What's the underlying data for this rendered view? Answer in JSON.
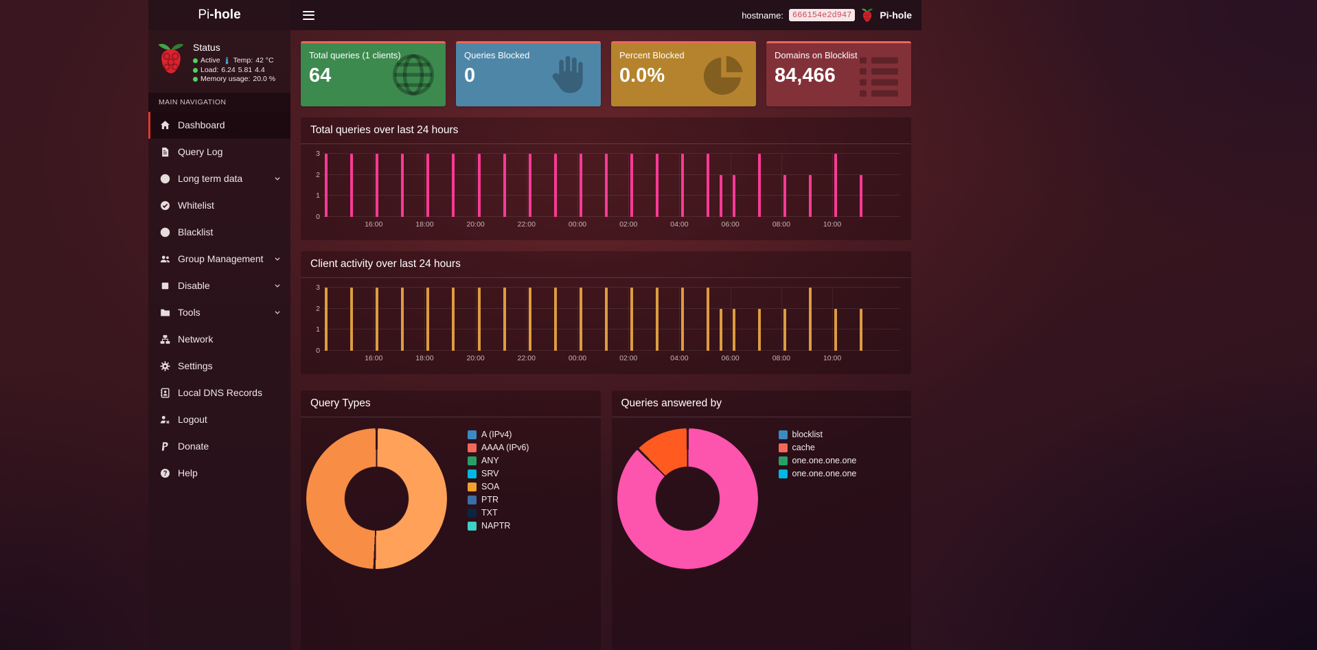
{
  "brand": {
    "prefix": "Pi",
    "bold": "-hole"
  },
  "navbar": {
    "hostname_label": "hostname:",
    "hostname_value": "666154e2d947",
    "product_label": "Pi-hole"
  },
  "theme": {
    "nav_active_border": "#e0382c",
    "status_dot": "#4fd35f",
    "hostname_badge_bg": "#f6e7e9",
    "hostname_badge_text": "#c9505a",
    "card_top_border": "#ea675c"
  },
  "sidebar": {
    "status_title": "Status",
    "status": {
      "active_label": "Active",
      "temp_label": "Temp:",
      "temp_value": "42 °C",
      "load_label": "Load:",
      "load_values": [
        "6.24",
        "5.81",
        "4.4"
      ],
      "memory_label": "Memory usage:",
      "memory_value": "20.0 %"
    },
    "section_label": "MAIN NAVIGATION",
    "items": [
      {
        "label": "Dashboard",
        "icon": "home-icon",
        "active": true
      },
      {
        "label": "Query Log",
        "icon": "file-icon"
      },
      {
        "label": "Long term data",
        "icon": "clock-icon",
        "expandable": true
      },
      {
        "label": "Whitelist",
        "icon": "check-circle-icon"
      },
      {
        "label": "Blacklist",
        "icon": "ban-icon"
      },
      {
        "label": "Group Management",
        "icon": "users-icon",
        "expandable": true
      },
      {
        "label": "Disable",
        "icon": "stop-icon",
        "expandable": true
      },
      {
        "label": "Tools",
        "icon": "folder-icon",
        "expandable": true
      },
      {
        "label": "Network",
        "icon": "network-icon"
      },
      {
        "label": "Settings",
        "icon": "gear-icon"
      },
      {
        "label": "Local DNS Records",
        "icon": "address-book-icon"
      },
      {
        "label": "Logout",
        "icon": "logout-icon"
      },
      {
        "label": "Donate",
        "icon": "paypal-icon"
      },
      {
        "label": "Help",
        "icon": "question-icon"
      }
    ]
  },
  "cards": [
    {
      "title": "Total queries (1 clients)",
      "value": "64",
      "color": "#3c8a4e",
      "icon": "globe-icon"
    },
    {
      "title": "Queries Blocked",
      "value": "0",
      "color": "#4e86a8",
      "icon": "hand-icon"
    },
    {
      "title": "Percent Blocked",
      "value": "0.0%",
      "color": "#b5832d",
      "icon": "pie-chart-icon"
    },
    {
      "title": "Domains on Blocklist",
      "value": "84,466",
      "color": "#833139",
      "icon": "list-icon"
    }
  ],
  "chart_data": [
    {
      "type": "bar",
      "title": "Total queries over last 24 hours",
      "color": "#fb3a96",
      "ylim": [
        0,
        3
      ],
      "yticks": [
        0,
        1,
        2,
        3
      ],
      "x_axis_start": "14:00",
      "x_axis_total_minutes": 1360,
      "xticks": [
        {
          "label": "16:00",
          "t": 120
        },
        {
          "label": "18:00",
          "t": 240
        },
        {
          "label": "20:00",
          "t": 360
        },
        {
          "label": "22:00",
          "t": 480
        },
        {
          "label": "00:00",
          "t": 600
        },
        {
          "label": "02:00",
          "t": 720
        },
        {
          "label": "04:00",
          "t": 840
        },
        {
          "label": "06:00",
          "t": 960
        },
        {
          "label": "08:00",
          "t": 1080
        },
        {
          "label": "10:00",
          "t": 1200
        }
      ],
      "bars": [
        {
          "t": 8,
          "v": 3
        },
        {
          "t": 68,
          "v": 3
        },
        {
          "t": 128,
          "v": 3
        },
        {
          "t": 188,
          "v": 3
        },
        {
          "t": 248,
          "v": 3
        },
        {
          "t": 308,
          "v": 3
        },
        {
          "t": 368,
          "v": 3
        },
        {
          "t": 428,
          "v": 3
        },
        {
          "t": 488,
          "v": 3
        },
        {
          "t": 548,
          "v": 3
        },
        {
          "t": 608,
          "v": 3
        },
        {
          "t": 668,
          "v": 3
        },
        {
          "t": 728,
          "v": 3
        },
        {
          "t": 788,
          "v": 3
        },
        {
          "t": 848,
          "v": 3
        },
        {
          "t": 908,
          "v": 3
        },
        {
          "t": 938,
          "v": 2
        },
        {
          "t": 968,
          "v": 2
        },
        {
          "t": 1028,
          "v": 3
        },
        {
          "t": 1088,
          "v": 2
        },
        {
          "t": 1148,
          "v": 2
        },
        {
          "t": 1208,
          "v": 3
        },
        {
          "t": 1268,
          "v": 2
        }
      ]
    },
    {
      "type": "bar",
      "title": "Client activity over last 24 hours",
      "color": "#dd9c40",
      "ylim": [
        0,
        3
      ],
      "yticks": [
        0,
        1,
        2,
        3
      ],
      "x_axis_start": "14:00",
      "x_axis_total_minutes": 1360,
      "xticks": [
        {
          "label": "16:00",
          "t": 120
        },
        {
          "label": "18:00",
          "t": 240
        },
        {
          "label": "20:00",
          "t": 360
        },
        {
          "label": "22:00",
          "t": 480
        },
        {
          "label": "00:00",
          "t": 600
        },
        {
          "label": "02:00",
          "t": 720
        },
        {
          "label": "04:00",
          "t": 840
        },
        {
          "label": "06:00",
          "t": 960
        },
        {
          "label": "08:00",
          "t": 1080
        },
        {
          "label": "10:00",
          "t": 1200
        }
      ],
      "bars": [
        {
          "t": 8,
          "v": 3
        },
        {
          "t": 68,
          "v": 3
        },
        {
          "t": 128,
          "v": 3
        },
        {
          "t": 188,
          "v": 3
        },
        {
          "t": 248,
          "v": 3
        },
        {
          "t": 308,
          "v": 3
        },
        {
          "t": 368,
          "v": 3
        },
        {
          "t": 428,
          "v": 3
        },
        {
          "t": 488,
          "v": 3
        },
        {
          "t": 548,
          "v": 3
        },
        {
          "t": 608,
          "v": 3
        },
        {
          "t": 668,
          "v": 3
        },
        {
          "t": 728,
          "v": 3
        },
        {
          "t": 788,
          "v": 3
        },
        {
          "t": 848,
          "v": 3
        },
        {
          "t": 908,
          "v": 3
        },
        {
          "t": 938,
          "v": 2
        },
        {
          "t": 968,
          "v": 2
        },
        {
          "t": 1028,
          "v": 2
        },
        {
          "t": 1088,
          "v": 2
        },
        {
          "t": 1148,
          "v": 3
        },
        {
          "t": 1208,
          "v": 2
        },
        {
          "t": 1268,
          "v": 2
        }
      ]
    },
    {
      "type": "doughnut",
      "title": "Query Types",
      "segments": [
        {
          "value": 50.5,
          "color": "#ffa159"
        },
        {
          "value": 49.5,
          "color": "#f88d45"
        }
      ],
      "legend": [
        {
          "label": "A (IPv4)",
          "color": "#3b8ac4"
        },
        {
          "label": "AAAA (IPv6)",
          "color": "#ef6a5a"
        },
        {
          "label": "ANY",
          "color": "#27a065"
        },
        {
          "label": "SRV",
          "color": "#00b8e6"
        },
        {
          "label": "SOA",
          "color": "#f0a030"
        },
        {
          "label": "PTR",
          "color": "#3a6ea5"
        },
        {
          "label": "TXT",
          "color": "#0b2540"
        },
        {
          "label": "NAPTR",
          "color": "#3ecfc6"
        }
      ]
    },
    {
      "type": "doughnut",
      "title": "Queries answered by",
      "segments": [
        {
          "value": 87.5,
          "color": "#fd54ae"
        },
        {
          "value": 12.5,
          "color": "#ff5a1f"
        }
      ],
      "legend": [
        {
          "label": "blocklist",
          "color": "#3b8ac4"
        },
        {
          "label": "cache",
          "color": "#ef6a5a"
        },
        {
          "label": "one.one.one.one",
          "color": "#27a065"
        },
        {
          "label": "one.one.one.one",
          "color": "#00b8e6"
        }
      ]
    }
  ]
}
